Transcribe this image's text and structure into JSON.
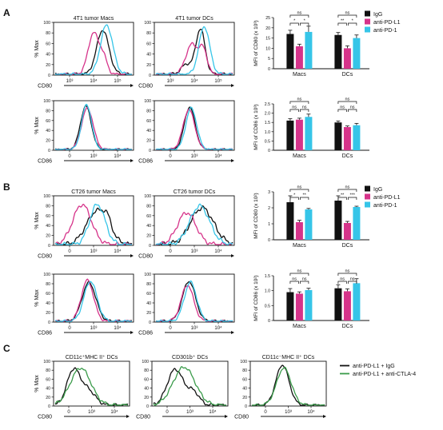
{
  "panels": [
    {
      "letter": "A",
      "histograms": [
        {
          "title": "4T1 tumor Macs",
          "ylabel": "% Max",
          "xlabel": "CD80",
          "ticks": [
            "10³",
            "10⁴",
            "10⁵"
          ]
        },
        {
          "title": "4T1 tumor DCs",
          "ylabel": "",
          "xlabel": "CD80",
          "ticks": [
            "10³",
            "10⁴",
            "10⁵"
          ]
        },
        {
          "title": "",
          "ylabel": "% Max",
          "xlabel": "CD86",
          "ticks": [
            "0",
            "10³",
            "10⁴"
          ]
        },
        {
          "title": "",
          "ylabel": "",
          "xlabel": "CD86",
          "ticks": [
            "0",
            "10³",
            "10⁴"
          ]
        }
      ],
      "legend": [
        "IgG",
        "anti-PD-L1",
        "anti-PD-1"
      ]
    },
    {
      "letter": "B",
      "histograms": [
        {
          "title": "CT26 tumor Macs",
          "ylabel": "% Max",
          "xlabel": "CD80",
          "ticks": [
            "0",
            "10³",
            "10⁴"
          ]
        },
        {
          "title": "CT26 tumor DCs",
          "ylabel": "",
          "xlabel": "CD80",
          "ticks": [
            "0",
            "10³",
            "10⁴"
          ]
        },
        {
          "title": "",
          "ylabel": "% Max",
          "xlabel": "CD86",
          "ticks": [
            "0",
            "10³",
            "10⁴"
          ]
        },
        {
          "title": "",
          "ylabel": "",
          "xlabel": "CD86",
          "ticks": [
            "0",
            "10³",
            "10⁴"
          ]
        }
      ],
      "legend": [
        "IgG",
        "anti-PD-L1",
        "anti-PD-1"
      ]
    },
    {
      "letter": "C",
      "histograms": [
        {
          "title": "CD11c⁺MHC II⁺ DCs",
          "ylabel": "% Max",
          "xlabel": "CD80",
          "ticks": [
            "0",
            "10³",
            "10⁴"
          ]
        },
        {
          "title": "CD301b⁺ DCs",
          "ylabel": "",
          "xlabel": "CD80",
          "ticks": [
            "0",
            "10³",
            "10⁴"
          ]
        },
        {
          "title": "CD11c⁻MHC II⁺ DCs",
          "ylabel": "",
          "xlabel": "CD80",
          "ticks": [
            "0",
            "10³",
            "10⁴"
          ]
        }
      ],
      "legend": [
        "anti-PD-L1 + IgG",
        "anti-PD-L1 + anti-CTLA-4"
      ]
    }
  ],
  "hist_yticks": [
    "0",
    "20",
    "40",
    "60",
    "80",
    "100"
  ],
  "colors": {
    "IgG": "#111111",
    "anti-PD-L1": "#d6338a",
    "anti-PD-1": "#36c5e8",
    "anti-CTLA-4": "#3a9b4a"
  },
  "chart_data": [
    {
      "type": "bar",
      "panel": "A",
      "categories": [
        "Macs",
        "DCs"
      ],
      "ylabel": "MFI of CD80 (x 10³)",
      "ylim": [
        0,
        25
      ],
      "yticks": [
        "0",
        "5",
        "10",
        "15",
        "20",
        "25"
      ],
      "series": [
        {
          "name": "IgG",
          "values": [
            17,
            16.5
          ],
          "errors": [
            1.8,
            1.2
          ]
        },
        {
          "name": "anti-PD-L1",
          "values": [
            11,
            10
          ],
          "errors": [
            1,
            1.2
          ]
        },
        {
          "name": "anti-PD-1",
          "values": [
            18,
            15
          ],
          "errors": [
            2.8,
            1.5
          ]
        }
      ],
      "sig": [
        [
          "ns",
          "ns"
        ],
        [
          "*",
          "**"
        ],
        [
          "*",
          "*"
        ]
      ]
    },
    {
      "type": "bar",
      "panel": "A",
      "categories": [
        "Macs",
        "DCs"
      ],
      "ylabel": "MFI of CD86 (x 10³)",
      "ylim": [
        0,
        2.5
      ],
      "yticks": [
        "0",
        "0.5",
        "1.0",
        "1.5",
        "2.0",
        "2.5"
      ],
      "series": [
        {
          "name": "IgG",
          "values": [
            1.6,
            1.5
          ],
          "errors": [
            0.1,
            0.08
          ]
        },
        {
          "name": "anti-PD-L1",
          "values": [
            1.65,
            1.25
          ],
          "errors": [
            0.08,
            0.06
          ]
        },
        {
          "name": "anti-PD-1",
          "values": [
            1.8,
            1.35
          ],
          "errors": [
            0.15,
            0.1
          ]
        }
      ],
      "sig": [
        [
          "ns",
          "ns"
        ],
        [
          "ns",
          "ns"
        ],
        [
          "ns",
          "ns"
        ]
      ]
    },
    {
      "type": "bar",
      "panel": "B",
      "categories": [
        "Macs",
        "DCs"
      ],
      "ylabel": "MFI of CD80 (x 10²)",
      "ylim": [
        0,
        3
      ],
      "yticks": [
        "0",
        "1",
        "2",
        "3"
      ],
      "series": [
        {
          "name": "IgG",
          "values": [
            2.35,
            2.45
          ],
          "errors": [
            0.4,
            0.3
          ]
        },
        {
          "name": "anti-PD-L1",
          "values": [
            1.1,
            1.05
          ],
          "errors": [
            0.12,
            0.1
          ]
        },
        {
          "name": "anti-PD-1",
          "values": [
            1.9,
            2.05
          ],
          "errors": [
            0.06,
            0.05
          ]
        }
      ],
      "sig": [
        [
          "ns",
          "ns"
        ],
        [
          "*",
          "**"
        ],
        [
          "**",
          "***"
        ]
      ]
    },
    {
      "type": "bar",
      "panel": "B",
      "categories": [
        "Macs",
        "DCs"
      ],
      "ylabel": "MFI of CD86 (x 10²)",
      "ylim": [
        0,
        1.5
      ],
      "yticks": [
        "0",
        "0.5",
        "1.0",
        "1.5"
      ],
      "series": [
        {
          "name": "IgG",
          "values": [
            0.95,
            1.08
          ],
          "errors": [
            0.12,
            0.12
          ]
        },
        {
          "name": "anti-PD-L1",
          "values": [
            0.9,
            0.98
          ],
          "errors": [
            0.06,
            0.08
          ]
        },
        {
          "name": "anti-PD-1",
          "values": [
            1.02,
            1.25
          ],
          "errors": [
            0.06,
            0.15
          ]
        }
      ],
      "sig": [
        [
          "ns",
          "ns"
        ],
        [
          "ns",
          "ns"
        ],
        [
          "ns",
          "ns"
        ]
      ]
    }
  ]
}
